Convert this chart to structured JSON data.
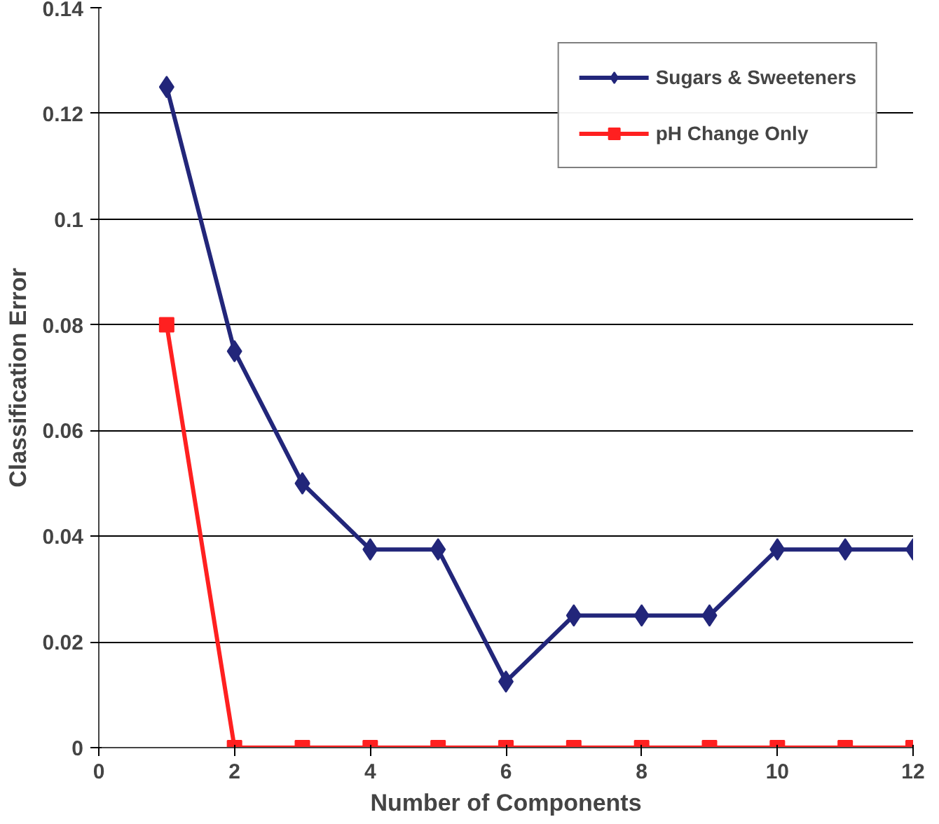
{
  "chart_data": {
    "type": "line",
    "xlabel": "Number of Components",
    "ylabel": "Classification Error",
    "x": [
      1,
      2,
      3,
      4,
      5,
      6,
      7,
      8,
      9,
      10,
      11,
      12
    ],
    "series": [
      {
        "name": "Sugars & Sweeteners",
        "color": "#22267a",
        "marker": "diamond",
        "values": [
          0.125,
          0.075,
          0.05,
          0.0375,
          0.0375,
          0.0125,
          0.025,
          0.025,
          0.025,
          0.0375,
          0.0375,
          0.0375
        ]
      },
      {
        "name": "pH Change Only",
        "color": "#ff2020",
        "marker": "square",
        "values": [
          0.08,
          0,
          0,
          0,
          0,
          0,
          0,
          0,
          0,
          0,
          0,
          0
        ]
      }
    ],
    "xlim": [
      0,
      12
    ],
    "xticks": [
      0,
      2,
      4,
      6,
      8,
      10,
      12
    ],
    "ylim": [
      0,
      0.14
    ],
    "yticks": [
      0,
      0.02,
      0.04,
      0.06,
      0.08,
      0.1,
      0.12,
      0.14
    ],
    "grid": "y",
    "legend": "top right",
    "line_style": "solid"
  }
}
